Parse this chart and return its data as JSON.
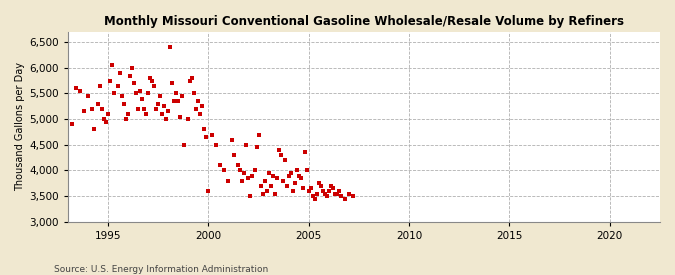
{
  "title": "Monthly Missouri Conventional Gasoline Wholesale/Resale Volume by Refiners",
  "ylabel": "Thousand Gallons per Day",
  "source": "Source: U.S. Energy Information Administration",
  "outer_bg": "#f0e8d0",
  "inner_bg": "#ffffff",
  "marker_color": "#cc0000",
  "marker_size": 8,
  "xlim": [
    1993.0,
    2022.5
  ],
  "ylim": [
    3000,
    6700
  ],
  "yticks": [
    3000,
    3500,
    4000,
    4500,
    5000,
    5500,
    6000,
    6500
  ],
  "xticks": [
    1995,
    2000,
    2005,
    2010,
    2015,
    2020
  ],
  "x": [
    1993.2,
    1993.4,
    1993.6,
    1993.8,
    1994.0,
    1994.2,
    1994.3,
    1994.5,
    1994.6,
    1994.7,
    1994.8,
    1994.9,
    1995.0,
    1995.1,
    1995.2,
    1995.3,
    1995.5,
    1995.6,
    1995.7,
    1995.8,
    1995.9,
    1996.0,
    1996.1,
    1996.2,
    1996.3,
    1996.4,
    1996.5,
    1996.6,
    1996.7,
    1996.8,
    1996.9,
    1997.0,
    1997.1,
    1997.2,
    1997.3,
    1997.4,
    1997.5,
    1997.6,
    1997.7,
    1997.8,
    1997.9,
    1998.0,
    1998.1,
    1998.2,
    1998.3,
    1998.4,
    1998.5,
    1998.6,
    1998.7,
    1998.8,
    1999.0,
    1999.1,
    1999.2,
    1999.3,
    1999.4,
    1999.5,
    1999.6,
    1999.7,
    1999.8,
    1999.9,
    2000.0,
    2000.2,
    2000.4,
    2000.6,
    2000.8,
    2001.0,
    2001.2,
    2001.3,
    2001.5,
    2001.6,
    2001.7,
    2001.8,
    2001.9,
    2002.0,
    2002.1,
    2002.2,
    2002.3,
    2002.4,
    2002.5,
    2002.6,
    2002.7,
    2002.8,
    2002.9,
    2003.0,
    2003.1,
    2003.2,
    2003.3,
    2003.4,
    2003.5,
    2003.6,
    2003.7,
    2003.8,
    2003.9,
    2004.0,
    2004.1,
    2004.2,
    2004.3,
    2004.4,
    2004.5,
    2004.6,
    2004.7,
    2004.8,
    2004.9,
    2005.0,
    2005.1,
    2005.2,
    2005.3,
    2005.4,
    2005.5,
    2005.6,
    2005.7,
    2005.8,
    2005.9,
    2006.0,
    2006.1,
    2006.2,
    2006.3,
    2006.4,
    2006.5,
    2006.6,
    2006.8,
    2007.0,
    2007.2
  ],
  "y": [
    4900,
    5600,
    5550,
    5150,
    5450,
    5200,
    4800,
    5300,
    5650,
    5200,
    5000,
    4950,
    5100,
    5750,
    6050,
    5500,
    5650,
    5900,
    5450,
    5300,
    5000,
    5100,
    5850,
    6000,
    5700,
    5500,
    5200,
    5550,
    5400,
    5200,
    5100,
    5500,
    5800,
    5750,
    5650,
    5200,
    5300,
    5450,
    5100,
    5250,
    5000,
    5150,
    6400,
    5700,
    5350,
    5500,
    5350,
    5050,
    5450,
    4500,
    5000,
    5750,
    5800,
    5500,
    5200,
    5350,
    5100,
    5250,
    4800,
    4650,
    3600,
    4700,
    4500,
    4100,
    4000,
    3800,
    4600,
    4300,
    4100,
    4000,
    3800,
    3950,
    4500,
    3850,
    3500,
    3900,
    4000,
    4450,
    4700,
    3700,
    3550,
    3800,
    3600,
    3950,
    3700,
    3900,
    3550,
    3850,
    4400,
    4300,
    3800,
    4200,
    3700,
    3900,
    3950,
    3600,
    3750,
    4000,
    3900,
    3850,
    3650,
    4350,
    4000,
    3600,
    3650,
    3500,
    3450,
    3550,
    3750,
    3700,
    3600,
    3550,
    3500,
    3600,
    3700,
    3650,
    3550,
    3550,
    3600,
    3500,
    3450,
    3550,
    3500
  ]
}
